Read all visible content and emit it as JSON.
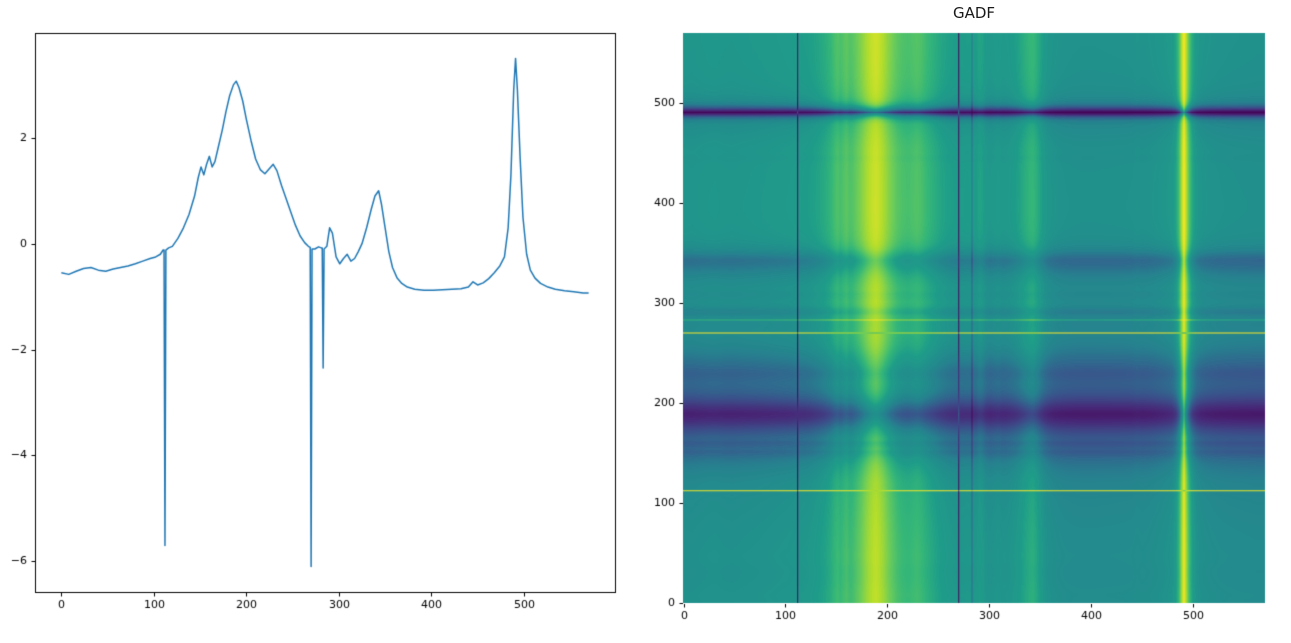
{
  "page": {
    "background": "#ffffff"
  },
  "chart_data": [
    {
      "type": "line",
      "title": "",
      "xlabel": "",
      "ylabel": "",
      "legend": null,
      "grid": false,
      "line_color": "#1f77b4",
      "line_width": 1.5,
      "xlim": [
        -28.5,
        598.5
      ],
      "ylim": [
        -6.58,
        3.98
      ],
      "xticks": [
        0,
        100,
        200,
        300,
        400,
        500
      ],
      "yticks": [
        -6,
        -4,
        -2,
        0,
        2
      ],
      "x": [
        0,
        8,
        16,
        24,
        32,
        40,
        48,
        56,
        64,
        72,
        80,
        88,
        96,
        102,
        107,
        110,
        111,
        112,
        113,
        116,
        120,
        126,
        132,
        138,
        144,
        148,
        151,
        154,
        157,
        160,
        163,
        166,
        170,
        174,
        178,
        182,
        186,
        189,
        192,
        196,
        200,
        205,
        210,
        215,
        220,
        225,
        229,
        233,
        238,
        243,
        248,
        253,
        258,
        263,
        267,
        269,
        270,
        271,
        274,
        278,
        281,
        282,
        283,
        284,
        287,
        290,
        293,
        297,
        301,
        305,
        309,
        313,
        317,
        321,
        325,
        330,
        335,
        339,
        343,
        346,
        350,
        354,
        358,
        363,
        368,
        374,
        382,
        392,
        402,
        412,
        422,
        432,
        440,
        445,
        450,
        456,
        462,
        468,
        474,
        479,
        483,
        486,
        489,
        491,
        493,
        496,
        499,
        503,
        507,
        512,
        518,
        526,
        534,
        544,
        554,
        564,
        570
      ],
      "y": [
        -0.55,
        -0.58,
        -0.52,
        -0.47,
        -0.45,
        -0.5,
        -0.52,
        -0.48,
        -0.45,
        -0.42,
        -0.38,
        -0.33,
        -0.28,
        -0.25,
        -0.2,
        -0.12,
        -0.12,
        -5.7,
        -0.12,
        -0.08,
        -0.05,
        0.1,
        0.3,
        0.55,
        0.9,
        1.25,
        1.45,
        1.3,
        1.5,
        1.65,
        1.45,
        1.55,
        1.85,
        2.15,
        2.5,
        2.8,
        3.0,
        3.07,
        2.95,
        2.7,
        2.35,
        1.95,
        1.6,
        1.4,
        1.32,
        1.42,
        1.5,
        1.38,
        1.1,
        0.85,
        0.6,
        0.35,
        0.15,
        0.02,
        -0.05,
        -0.07,
        -6.1,
        -0.1,
        -0.1,
        -0.06,
        -0.08,
        -0.08,
        -2.35,
        -0.1,
        -0.05,
        0.3,
        0.2,
        -0.25,
        -0.38,
        -0.28,
        -0.2,
        -0.33,
        -0.28,
        -0.15,
        0.0,
        0.3,
        0.65,
        0.9,
        1.0,
        0.75,
        0.3,
        -0.15,
        -0.45,
        -0.65,
        -0.75,
        -0.82,
        -0.86,
        -0.88,
        -0.88,
        -0.87,
        -0.86,
        -0.85,
        -0.82,
        -0.72,
        -0.78,
        -0.74,
        -0.66,
        -0.55,
        -0.42,
        -0.25,
        0.3,
        1.3,
        2.9,
        3.5,
        2.9,
        1.6,
        0.5,
        -0.2,
        -0.5,
        -0.65,
        -0.75,
        -0.82,
        -0.86,
        -0.89,
        -0.91,
        -0.93,
        -0.93
      ]
    },
    {
      "type": "heatmap",
      "title": "GADF",
      "colormap": "viridis",
      "origin": "lower",
      "derived_from": "chart_data.0",
      "formula": "GADF[i,j] = sin(phi_i - phi_j), phi = arccos of series min-max rescaled to [-1,1], series resampled at step 1 over x = 0..570",
      "n_samples": 571,
      "extent": [
        0,
        570,
        0,
        570
      ],
      "value_range": [
        -1,
        1
      ],
      "xticks": [
        0,
        100,
        200,
        300,
        400,
        500
      ],
      "yticks": [
        0,
        100,
        200,
        300,
        400,
        500
      ]
    }
  ]
}
